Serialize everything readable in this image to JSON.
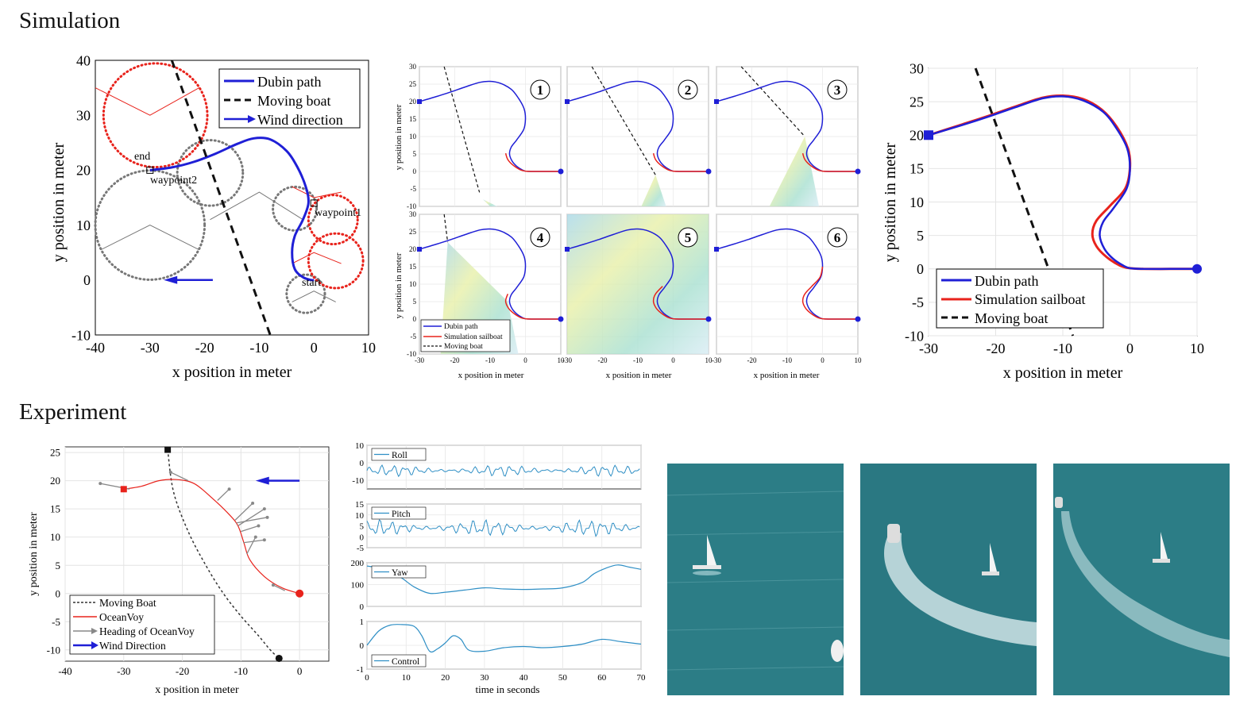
{
  "sections": {
    "simulation": "Simulation",
    "experiment": "Experiment"
  },
  "colors": {
    "blue": "#1f1fd6",
    "red": "#e8231c",
    "black": "#111111",
    "gray": "#777777",
    "sea": "#2e7f88",
    "line": "#2f8fc5"
  },
  "chart_data": [
    {
      "type": "line",
      "id": "sim_planner",
      "xlabel": "x position in meter",
      "ylabel": "y position in meter",
      "xlim": [
        -40,
        10
      ],
      "ylim": [
        -10,
        40
      ],
      "xticks": [
        -40,
        -30,
        -20,
        -10,
        0,
        10
      ],
      "yticks": [
        -10,
        0,
        10,
        20,
        30,
        40
      ],
      "legend": [
        "Dubin path",
        "Moving boat",
        "Wind direction"
      ],
      "legend_position": "top-right",
      "annotations": [
        "end",
        "waypoint2",
        "waypoint1",
        "start"
      ],
      "series": [
        {
          "name": "Dubin path",
          "x": [
            -30,
            -26,
            -22,
            -18,
            -14,
            -11,
            -8,
            -5,
            -3,
            -1.5,
            -1,
            -2,
            -3.5,
            -4,
            -3.5,
            -2,
            -0.5,
            0
          ],
          "y": [
            20,
            20.5,
            21.5,
            23,
            24.8,
            25.8,
            25.6,
            23.5,
            20.5,
            17,
            14,
            11,
            8,
            5,
            2,
            0.5,
            0,
            0
          ]
        },
        {
          "name": "Moving boat",
          "x": [
            -26,
            -8
          ],
          "y": [
            40,
            -10
          ]
        }
      ]
    },
    {
      "type": "line",
      "id": "sim_frames",
      "xlim": [
        -30,
        10
      ],
      "ylim": [
        -10,
        30
      ],
      "xticks": [
        -30,
        -20,
        -10,
        0,
        10
      ],
      "yticks": [
        -10,
        -5,
        0,
        5,
        10,
        15,
        20,
        25,
        30
      ],
      "ylabel": "y position in meter",
      "xlabel": "x position in meter",
      "panels": [
        "1",
        "2",
        "3",
        "4",
        "5",
        "6"
      ],
      "legend": [
        "Dubin path",
        "Simulation sailboat",
        "Moving boat"
      ]
    },
    {
      "type": "line",
      "id": "sim_result",
      "xlabel": "x position in meter",
      "ylabel": "y position in meter",
      "xlim": [
        -30,
        10
      ],
      "ylim": [
        -10,
        30
      ],
      "xticks": [
        -30,
        -20,
        -10,
        0,
        10
      ],
      "yticks": [
        -10,
        -5,
        0,
        5,
        10,
        15,
        20,
        25,
        30
      ],
      "legend": [
        "Dubin path",
        "Simulation sailboat",
        "Moving boat"
      ],
      "legend_position": "bottom-left",
      "series": [
        {
          "name": "Dubin path",
          "x": [
            10,
            6,
            2,
            0,
            -1,
            -2.5,
            -3.8,
            -4.5,
            -4,
            -2.5,
            -0.5,
            0,
            -0.4,
            -2,
            -4,
            -7,
            -10,
            -13,
            -17,
            -21,
            -25,
            -30
          ],
          "y": [
            0,
            0,
            0,
            0.1,
            0.5,
            1.5,
            3,
            5,
            7,
            9,
            12,
            15,
            18,
            21,
            23.5,
            25.2,
            25.8,
            25.5,
            24.2,
            22.8,
            21.5,
            20
          ]
        },
        {
          "name": "Simulation sailboat",
          "x": [
            10,
            6,
            2,
            0,
            -1.5,
            -3.5,
            -5,
            -5.6,
            -5,
            -3,
            -0.7,
            0,
            -0.3,
            -2,
            -4.2,
            -7,
            -10,
            -13,
            -17,
            -21,
            -25,
            -30
          ],
          "y": [
            0,
            0,
            0,
            0.1,
            0.5,
            1.8,
            3.4,
            5.2,
            7.2,
            9.4,
            12,
            15,
            18,
            21.3,
            23.8,
            25.4,
            25.9,
            25.6,
            24.3,
            22.9,
            21.6,
            20
          ]
        },
        {
          "name": "Moving boat",
          "x": [
            -23,
            -8.5
          ],
          "y": [
            30,
            -10
          ]
        }
      ]
    },
    {
      "type": "line",
      "id": "exp_trajectory",
      "xlabel": "x position in meter",
      "ylabel": "y position in meter",
      "xlim": [
        -40,
        5
      ],
      "ylim": [
        -12,
        26
      ],
      "xticks": [
        -40,
        -30,
        -20,
        -10,
        0
      ],
      "yticks": [
        -10,
        -5,
        0,
        5,
        10,
        15,
        20,
        25
      ],
      "legend": [
        "Moving Boat",
        "OceanVoy",
        "Heading of OceanVoy",
        "Wind Direction"
      ],
      "legend_position": "bottom-left",
      "series": [
        {
          "name": "Moving Boat",
          "x": [
            -22.5,
            -21.5,
            -19,
            -16,
            -13,
            -10,
            -7,
            -5,
            -3.5
          ],
          "y": [
            25.5,
            18,
            11,
            5,
            0,
            -4,
            -7.5,
            -10,
            -11.5
          ]
        },
        {
          "name": "OceanVoy",
          "x": [
            0,
            -3,
            -6,
            -8.5,
            -9.5,
            -10.5,
            -12,
            -15,
            -18,
            -21,
            -24,
            -27,
            -30
          ],
          "y": [
            0,
            1,
            3,
            6,
            9,
            12,
            14,
            17,
            19.5,
            20.2,
            20,
            19,
            18.5
          ]
        }
      ]
    },
    {
      "type": "line",
      "id": "exp_timeseries",
      "xlabel": "time in seconds",
      "xlim": [
        0,
        70
      ],
      "xticks": [
        0,
        10,
        20,
        30,
        40,
        50,
        60,
        70
      ],
      "panels": [
        {
          "name": "Roll",
          "ylim": [
            -15,
            10
          ],
          "yticks": [
            -10,
            0,
            10
          ]
        },
        {
          "name": "Pitch",
          "ylim": [
            -5,
            15
          ],
          "yticks": [
            -5,
            0,
            5,
            10,
            15
          ]
        },
        {
          "name": "Yaw",
          "ylim": [
            0,
            200
          ],
          "yticks": [
            0,
            100,
            200
          ],
          "x": [
            0,
            3,
            8,
            12,
            16,
            20,
            25,
            30,
            35,
            40,
            45,
            50,
            55,
            58,
            61,
            64,
            67,
            70
          ],
          "y": [
            185,
            175,
            140,
            90,
            60,
            65,
            75,
            85,
            80,
            78,
            80,
            85,
            110,
            150,
            175,
            190,
            180,
            170
          ]
        },
        {
          "name": "Control",
          "ylim": [
            -1,
            1
          ],
          "yticks": [
            -1,
            0,
            1
          ],
          "x": [
            0,
            3,
            6,
            9,
            12,
            14,
            16,
            18,
            20,
            22,
            24,
            26,
            30,
            35,
            40,
            45,
            50,
            55,
            60,
            65,
            70
          ],
          "y": [
            0,
            0.6,
            0.85,
            0.87,
            0.8,
            0.4,
            -0.25,
            -0.15,
            0.1,
            0.4,
            0.25,
            -0.2,
            -0.25,
            -0.1,
            -0.05,
            -0.1,
            -0.05,
            0.05,
            0.25,
            0.15,
            0.05
          ]
        }
      ]
    }
  ]
}
